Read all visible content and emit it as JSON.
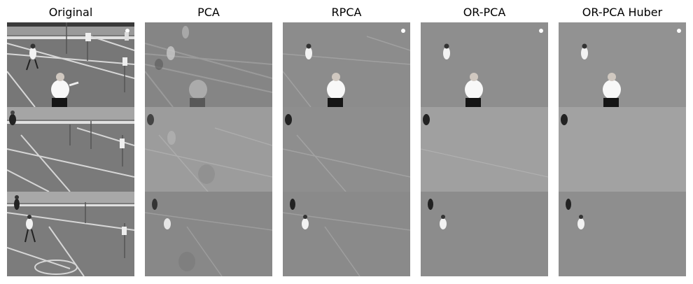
{
  "panels": [
    {
      "title": "Original",
      "style": "original"
    },
    {
      "title": "PCA",
      "style": "pca"
    },
    {
      "title": "RPCA",
      "style": "rpca"
    },
    {
      "title": "OR-PCA",
      "style": "orpca"
    },
    {
      "title": "OR-PCA Huber",
      "style": "huber"
    }
  ],
  "colors": {
    "page_bg": "#ffffff",
    "original_floor": "#7c7c7c",
    "pca_floor": "#8a8a8a",
    "rpca_floor": "#8c8c8c",
    "orpca_floor": "#8e8e8e",
    "huber_floor": "#929292"
  }
}
